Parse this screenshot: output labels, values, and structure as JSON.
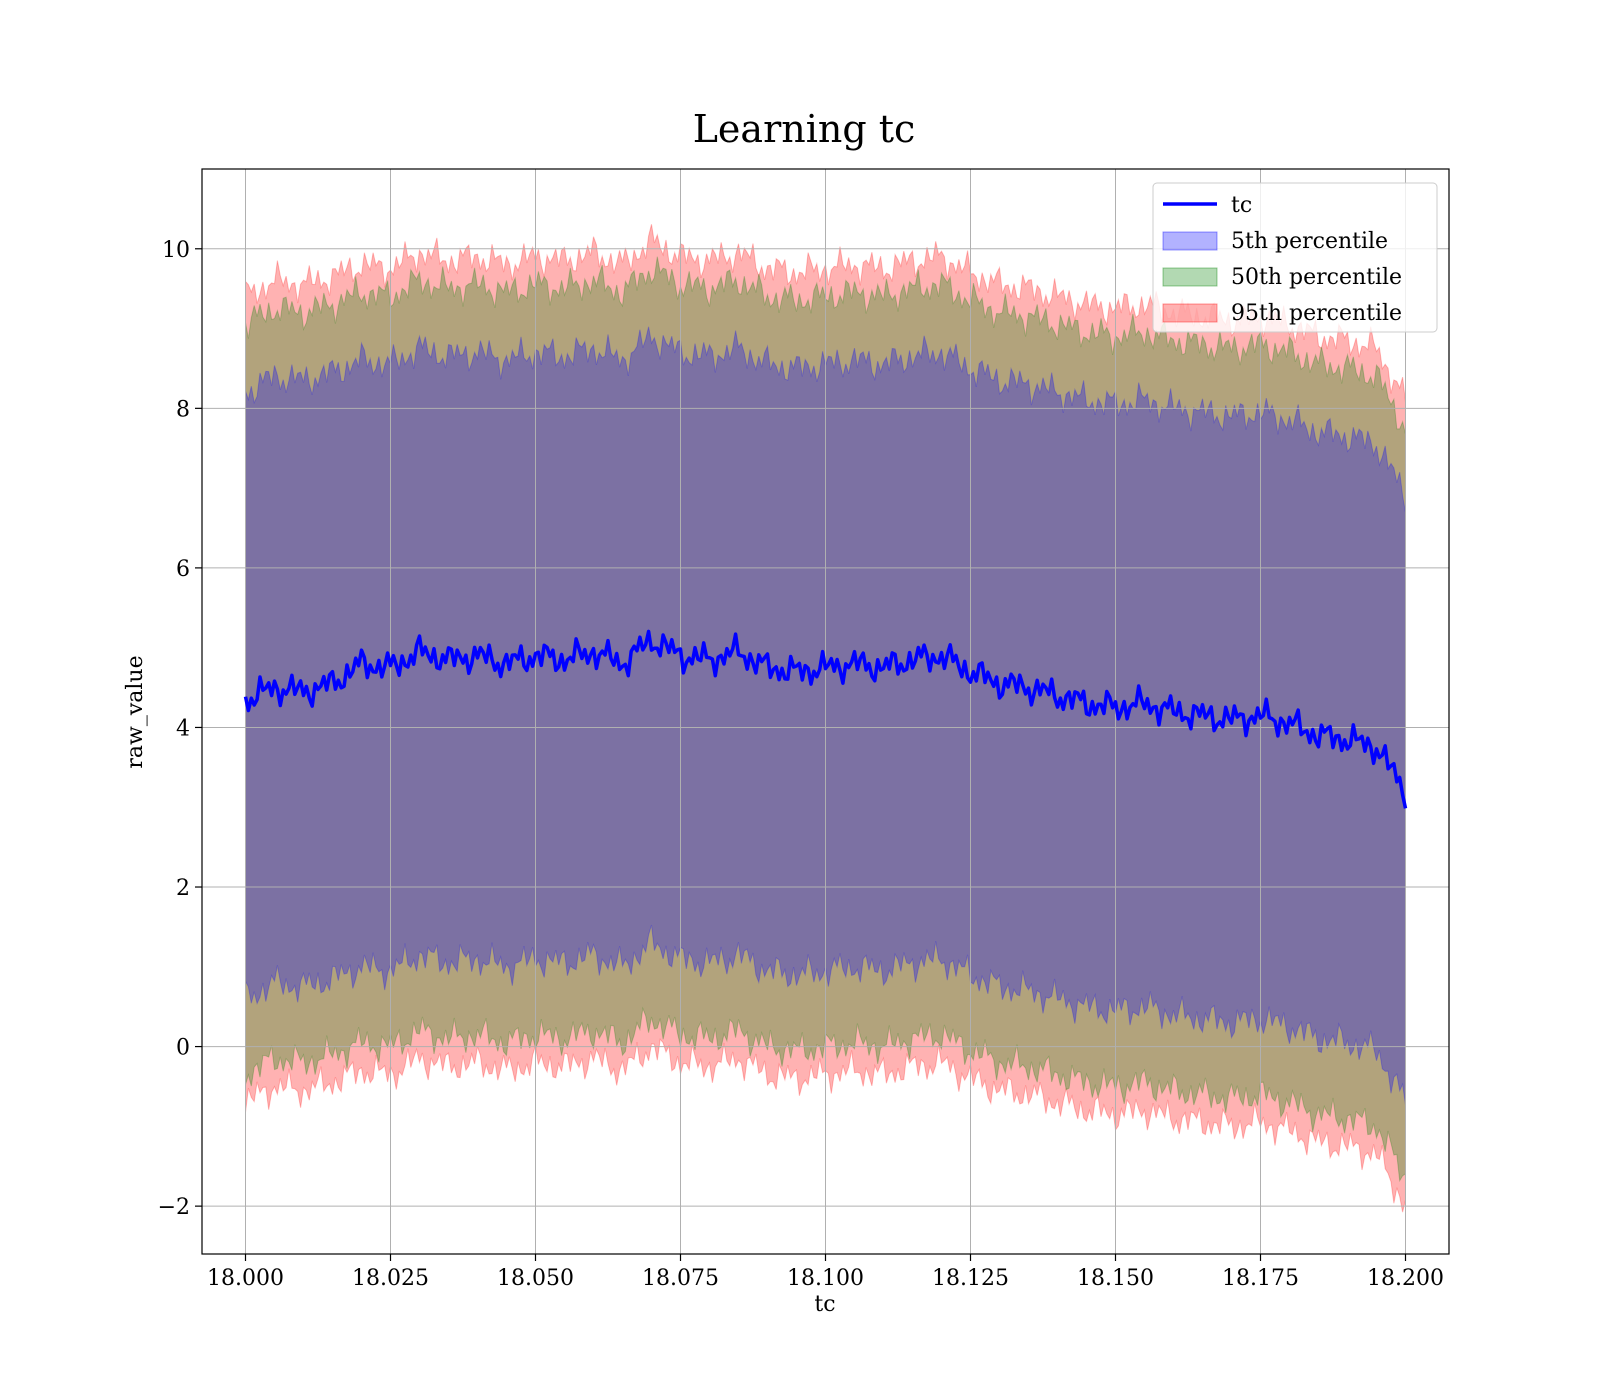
{
  "chart_data": {
    "type": "area",
    "title": "Learning tc",
    "xlabel": "tc",
    "ylabel": "raw_value",
    "xlim": [
      17.9925,
      18.2075
    ],
    "ylim": [
      -2.6,
      11.0
    ],
    "xticks": [
      18.0,
      18.025,
      18.05,
      18.075,
      18.1,
      18.125,
      18.15,
      18.175,
      18.2
    ],
    "xtick_labels": [
      "18.000",
      "18.025",
      "18.050",
      "18.075",
      "18.100",
      "18.125",
      "18.150",
      "18.175",
      "18.200"
    ],
    "yticks": [
      -2,
      0,
      2,
      4,
      6,
      8,
      10
    ],
    "ytick_labels": [
      "−2",
      "0",
      "2",
      "4",
      "6",
      "8",
      "10"
    ],
    "grid": true,
    "legend_position": "top-right",
    "x": [
      18.0,
      18.005,
      18.01,
      18.015,
      18.02,
      18.025,
      18.03,
      18.035,
      18.04,
      18.045,
      18.05,
      18.055,
      18.06,
      18.065,
      18.07,
      18.075,
      18.08,
      18.085,
      18.09,
      18.095,
      18.1,
      18.105,
      18.11,
      18.115,
      18.12,
      18.125,
      18.13,
      18.135,
      18.14,
      18.145,
      18.15,
      18.155,
      18.16,
      18.165,
      18.17,
      18.175,
      18.18,
      18.185,
      18.19,
      18.195,
      18.2
    ],
    "series": [
      {
        "name": "tc",
        "kind": "line",
        "color": "#0000ff",
        "values": [
          4.35,
          4.5,
          4.45,
          4.55,
          4.8,
          4.75,
          4.95,
          4.85,
          4.9,
          4.8,
          4.9,
          4.85,
          4.95,
          4.8,
          5.1,
          4.9,
          4.85,
          4.95,
          4.75,
          4.7,
          4.75,
          4.8,
          4.75,
          4.85,
          4.9,
          4.7,
          4.55,
          4.5,
          4.4,
          4.3,
          4.25,
          4.3,
          4.2,
          4.15,
          4.1,
          4.15,
          4.05,
          3.9,
          3.85,
          3.75,
          3.2
        ]
      },
      {
        "name": "5th percentile",
        "kind": "band",
        "color": "#0000ff",
        "alpha": 0.3,
        "lower": [
          0.6,
          0.8,
          0.75,
          0.85,
          1.0,
          0.95,
          1.15,
          1.05,
          1.1,
          1.0,
          1.1,
          1.05,
          1.15,
          1.0,
          1.3,
          1.1,
          1.05,
          1.15,
          0.95,
          0.9,
          0.95,
          1.0,
          0.95,
          1.05,
          1.1,
          0.9,
          0.75,
          0.7,
          0.6,
          0.5,
          0.45,
          0.5,
          0.4,
          0.35,
          0.3,
          0.35,
          0.25,
          0.1,
          0.05,
          -0.05,
          -0.7
        ],
        "upper": [
          8.2,
          8.4,
          8.35,
          8.45,
          8.6,
          8.55,
          8.75,
          8.65,
          8.7,
          8.6,
          8.7,
          8.65,
          8.75,
          8.6,
          8.9,
          8.7,
          8.65,
          8.75,
          8.55,
          8.5,
          8.55,
          8.6,
          8.55,
          8.65,
          8.7,
          8.5,
          8.35,
          8.3,
          8.2,
          8.1,
          8.05,
          8.1,
          8.0,
          7.95,
          7.9,
          7.95,
          7.85,
          7.7,
          7.65,
          7.55,
          6.9
        ]
      },
      {
        "name": "50th percentile",
        "kind": "band",
        "color": "#008000",
        "alpha": 0.3,
        "lower": [
          -0.35,
          -0.15,
          -0.2,
          -0.1,
          0.05,
          0.0,
          0.2,
          0.1,
          0.15,
          0.05,
          0.15,
          0.1,
          0.2,
          0.05,
          0.35,
          0.15,
          0.1,
          0.2,
          0.0,
          -0.05,
          0.0,
          0.05,
          0.0,
          0.1,
          0.15,
          -0.05,
          -0.2,
          -0.25,
          -0.35,
          -0.45,
          -0.5,
          -0.45,
          -0.55,
          -0.6,
          -0.65,
          -0.6,
          -0.7,
          -0.85,
          -0.9,
          -1.0,
          -1.65
        ],
        "upper": [
          9.05,
          9.25,
          9.2,
          9.3,
          9.45,
          9.4,
          9.6,
          9.5,
          9.55,
          9.45,
          9.55,
          9.5,
          9.6,
          9.45,
          9.75,
          9.55,
          9.5,
          9.6,
          9.4,
          9.35,
          9.4,
          9.45,
          9.4,
          9.5,
          9.55,
          9.35,
          9.2,
          9.15,
          9.05,
          8.95,
          8.9,
          8.95,
          8.85,
          8.8,
          8.75,
          8.8,
          8.7,
          8.55,
          8.5,
          8.4,
          7.75
        ]
      },
      {
        "name": "95th percentile",
        "kind": "band",
        "color": "#ff0000",
        "alpha": 0.3,
        "lower": [
          -0.7,
          -0.5,
          -0.55,
          -0.45,
          -0.3,
          -0.35,
          -0.15,
          -0.25,
          -0.2,
          -0.3,
          -0.2,
          -0.25,
          -0.15,
          -0.3,
          0.0,
          -0.2,
          -0.25,
          -0.15,
          -0.35,
          -0.4,
          -0.35,
          -0.3,
          -0.35,
          -0.25,
          -0.2,
          -0.4,
          -0.55,
          -0.6,
          -0.7,
          -0.8,
          -0.85,
          -0.8,
          -0.9,
          -0.95,
          -1.0,
          -0.95,
          -1.05,
          -1.2,
          -1.25,
          -1.35,
          -2.0
        ],
        "upper": [
          9.4,
          9.6,
          9.55,
          9.65,
          9.8,
          9.75,
          9.95,
          9.85,
          9.9,
          9.8,
          9.9,
          9.85,
          9.95,
          9.8,
          10.1,
          9.9,
          9.85,
          9.95,
          9.75,
          9.7,
          9.75,
          9.8,
          9.75,
          9.85,
          9.9,
          9.7,
          9.55,
          9.5,
          9.4,
          9.3,
          9.25,
          9.3,
          9.2,
          9.15,
          9.1,
          9.15,
          9.05,
          8.9,
          8.85,
          8.75,
          8.1
        ]
      }
    ]
  }
}
